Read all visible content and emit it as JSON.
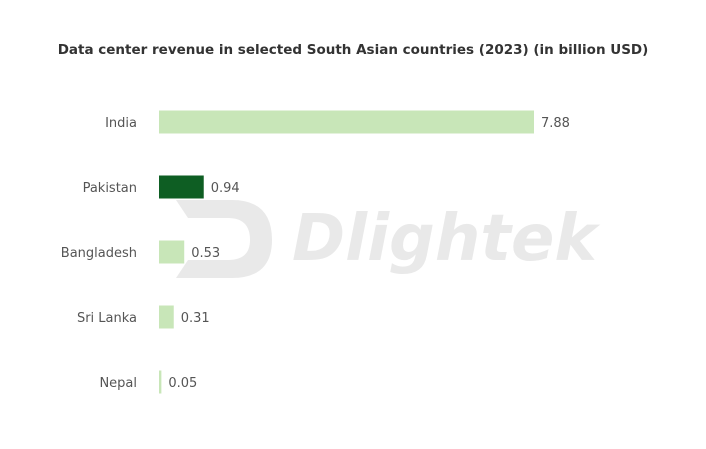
{
  "chart_data": {
    "type": "bar",
    "orientation": "horizontal",
    "title": "Data center revenue in selected South Asian countries (2023) (in billion USD)",
    "categories": [
      "India",
      "Pakistan",
      "Bangladesh",
      "Sri Lanka",
      "Nepal"
    ],
    "values": [
      7.88,
      0.94,
      0.53,
      0.31,
      0.05
    ],
    "value_labels": [
      "7.88",
      "0.94",
      "0.53",
      "0.31",
      "0.05"
    ],
    "highlight_category": "Pakistan",
    "xlim": [
      0,
      7.88
    ],
    "grid": false,
    "legend": "none"
  },
  "colors": {
    "bar": "#c8e6b8",
    "highlight": "#0e5e23",
    "text": "#555555",
    "title": "#333333",
    "watermark": "#e9e9e9"
  },
  "watermark": {
    "text": "Dlightek",
    "icon": "dlightek-logo-icon"
  }
}
